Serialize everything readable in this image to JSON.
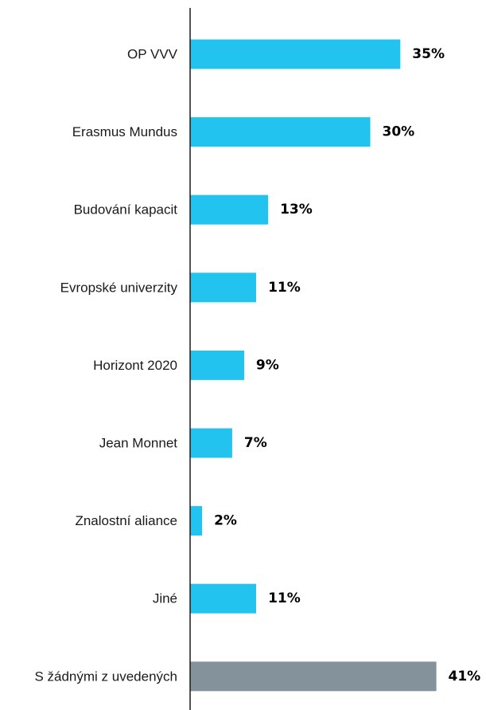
{
  "chart_data": {
    "type": "bar",
    "orientation": "horizontal",
    "categories": [
      "OP VVV",
      "Erasmus Mundus",
      "Budování kapacit",
      "Evropské univerzity",
      "Horizont 2020",
      "Jean Monnet",
      "Znalostní aliance",
      "Jiné",
      "S žádnými z uvedených"
    ],
    "values": [
      35,
      30,
      13,
      11,
      9,
      7,
      2,
      11,
      41
    ],
    "value_labels": [
      "35%",
      "30%",
      "13%",
      "11%",
      "9%",
      "7%",
      "2%",
      "11%",
      "41%"
    ],
    "bar_colors": [
      "#22c3ef",
      "#22c3ef",
      "#22c3ef",
      "#22c3ef",
      "#22c3ef",
      "#22c3ef",
      "#22c3ef",
      "#22c3ef",
      "#84939b"
    ],
    "axis_color": "#1a1a1a",
    "title": "",
    "xlabel": "",
    "ylabel": "",
    "grid": false,
    "legend": "none"
  }
}
